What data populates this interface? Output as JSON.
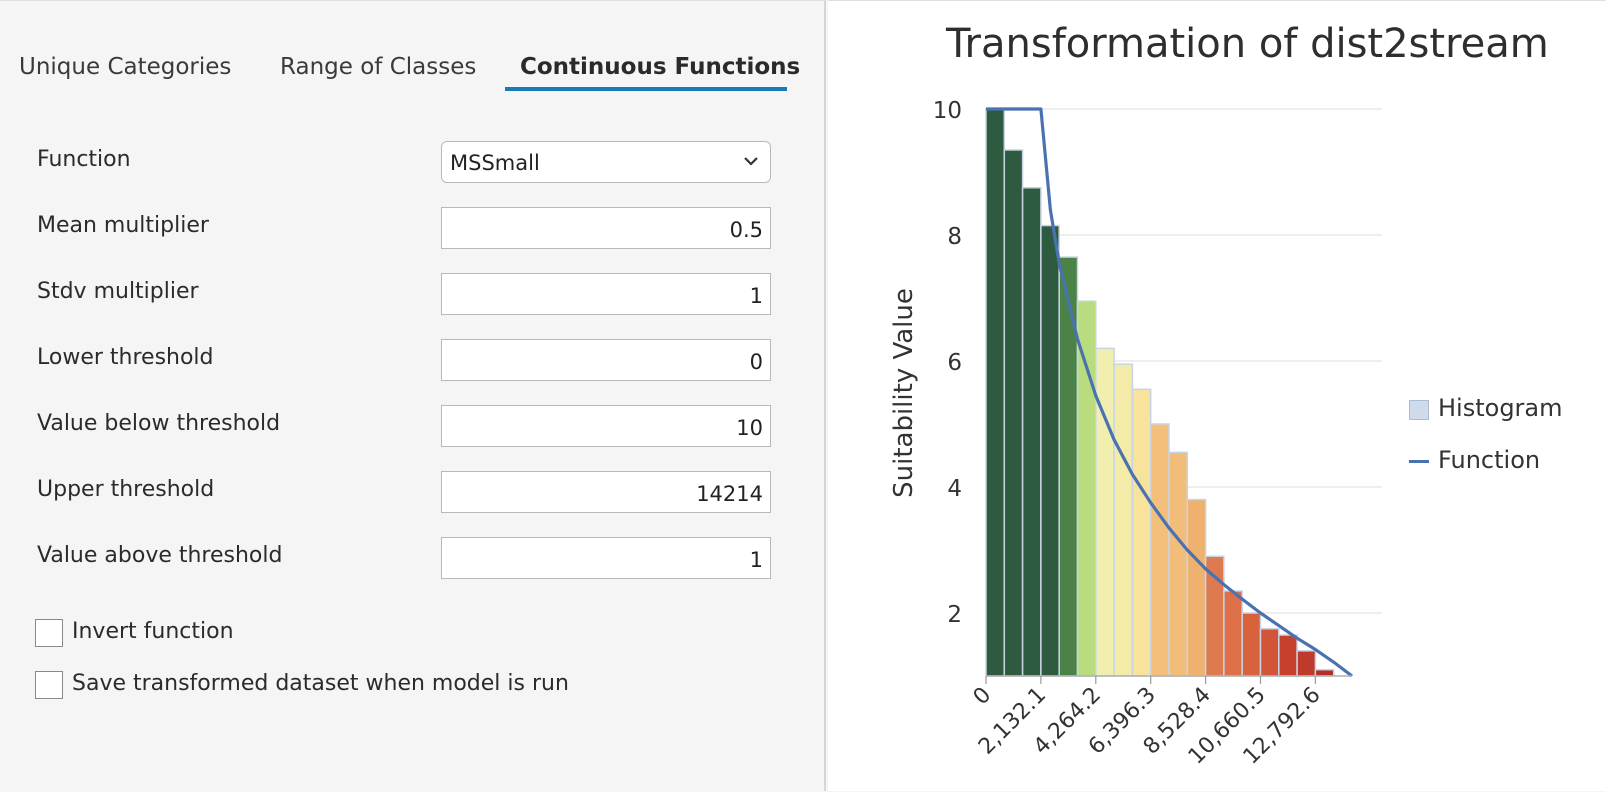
{
  "tabs": [
    {
      "label": "Unique Categories"
    },
    {
      "label": "Range of Classes"
    },
    {
      "label": "Continuous Functions"
    }
  ],
  "form": {
    "function_label": "Function",
    "function_value": "MSSmall",
    "mean_label": "Mean multiplier",
    "mean_value": "0.5",
    "stdv_label": "Stdv multiplier",
    "stdv_value": "1",
    "lower_label": "Lower threshold",
    "lower_value": "0",
    "below_label": "Value below threshold",
    "below_value": "10",
    "upper_label": "Upper threshold",
    "upper_value": "14214",
    "above_label": "Value above threshold",
    "above_value": "1"
  },
  "options": {
    "invert_label": "Invert function",
    "save_label": "Save transformed dataset when model is run"
  },
  "chart_data": {
    "type": "bar",
    "title": "Transformation of dist2stream",
    "ylabel": "Suitability Value",
    "xlabel": "",
    "ylim": [
      1,
      10
    ],
    "xlim": [
      0,
      14214
    ],
    "y_ticks": [
      "2",
      "4",
      "6",
      "8",
      "10"
    ],
    "x_tick_labels": [
      "0",
      "2,132.1",
      "4,264.2",
      "6,396.3",
      "8,528.4",
      "10,660.5",
      "12,792.6"
    ],
    "x_ticks": [
      0,
      2132.1,
      4264.2,
      6396.3,
      8528.4,
      10660.5,
      12792.6
    ],
    "legend": [
      {
        "name": "Histogram",
        "kind": "swatch"
      },
      {
        "name": "Function",
        "kind": "line"
      }
    ],
    "histogram": {
      "bin_width": 710.7,
      "values": [
        10,
        9.35,
        8.75,
        8.15,
        7.65,
        6.95,
        6.2,
        5.95,
        5.55,
        5.0,
        4.55,
        3.8,
        2.9,
        2.35,
        2.0,
        1.75,
        1.65,
        1.4,
        1.1,
        1.0
      ],
      "colors": [
        "#2e5b40",
        "#2e5b40",
        "#2e5b40",
        "#2e5b40",
        "#4a8248",
        "#b8dc7e",
        "#f0efaf",
        "#f4eba8",
        "#f8e39c",
        "#f3c07c",
        "#f2bd78",
        "#efb16e",
        "#de7a4f",
        "#dd7048",
        "#d8623e",
        "#d25538",
        "#c7402e",
        "#c03a2b",
        "#b32e24",
        "#b32e24"
      ]
    },
    "function_line": {
      "x": [
        0,
        710.7,
        1421.4,
        2132.1,
        2500,
        2842.8,
        3553.5,
        4264.2,
        4974.9,
        5685.6,
        6396.3,
        7107,
        7817.7,
        8528.4,
        9239.1,
        9949.8,
        10660.5,
        11371.2,
        12081.9,
        12792.6,
        13503.3,
        14214
      ],
      "y": [
        10,
        10,
        10,
        10,
        8.4,
        7.55,
        6.35,
        5.45,
        4.75,
        4.2,
        3.75,
        3.35,
        3.0,
        2.7,
        2.45,
        2.22,
        2.0,
        1.8,
        1.6,
        1.42,
        1.22,
        1.0
      ]
    },
    "grid": true,
    "legend_position": "right"
  }
}
